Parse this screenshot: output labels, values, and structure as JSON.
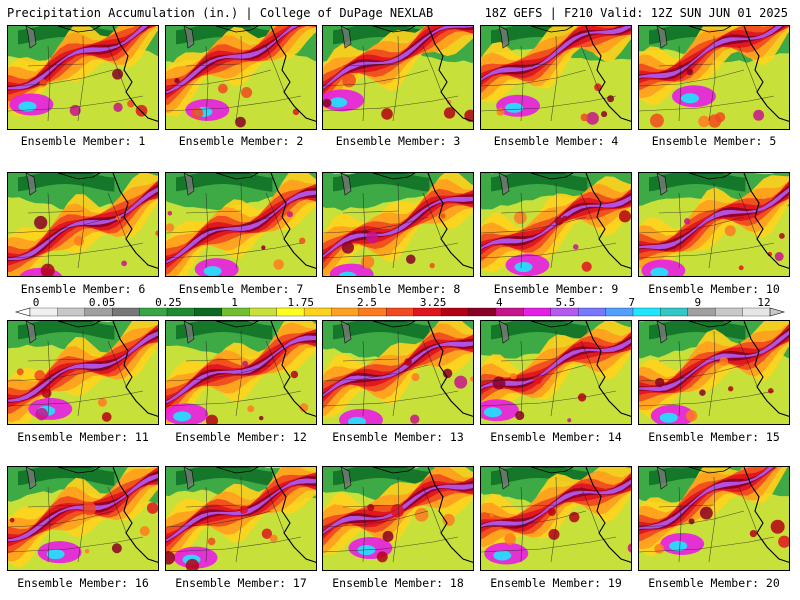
{
  "header": {
    "left": "Precipitation Accumulation (in.) | College of DuPage NEXLAB",
    "right": "18Z GEFS | F210 Valid: 12Z SUN JUN 01 2025"
  },
  "colors": {
    "ramp": [
      "#f0f0f0",
      "#c8c8c8",
      "#a0a0a0",
      "#787878",
      "#37a647",
      "#1f8a32",
      "#0b6a22",
      "#6fbf2f",
      "#c8e03a",
      "#ffff1e",
      "#ffd21e",
      "#ffa01e",
      "#ff7a1e",
      "#f04a1e",
      "#e0141e",
      "#b40014",
      "#8a0026",
      "#c8148c",
      "#e61ee6",
      "#b45af0",
      "#7878ff",
      "#50a0ff",
      "#1ee6ff",
      "#32c8c8",
      "#a0a0a0",
      "#c8c8c8",
      "#e6e6e6"
    ]
  },
  "colorbar": {
    "labels": [
      "0",
      "0.05",
      "0.25",
      "1",
      "1.75",
      "2.5",
      "3.25",
      "4",
      "5.5",
      "7",
      "9",
      "12"
    ]
  },
  "panels": [
    {
      "label": "Ensemble Member: 1"
    },
    {
      "label": "Ensemble Member: 2"
    },
    {
      "label": "Ensemble Member: 3"
    },
    {
      "label": "Ensemble Member: 4"
    },
    {
      "label": "Ensemble Member: 5"
    },
    {
      "label": "Ensemble Member: 6"
    },
    {
      "label": "Ensemble Member: 7"
    },
    {
      "label": "Ensemble Member: 8"
    },
    {
      "label": "Ensemble Member: 9"
    },
    {
      "label": "Ensemble Member: 10"
    },
    {
      "label": "Ensemble Member: 11"
    },
    {
      "label": "Ensemble Member: 12"
    },
    {
      "label": "Ensemble Member: 13"
    },
    {
      "label": "Ensemble Member: 14"
    },
    {
      "label": "Ensemble Member: 15"
    },
    {
      "label": "Ensemble Member: 16"
    },
    {
      "label": "Ensemble Member: 17"
    },
    {
      "label": "Ensemble Member: 18"
    },
    {
      "label": "Ensemble Member: 19"
    },
    {
      "label": "Ensemble Member: 20"
    }
  ]
}
